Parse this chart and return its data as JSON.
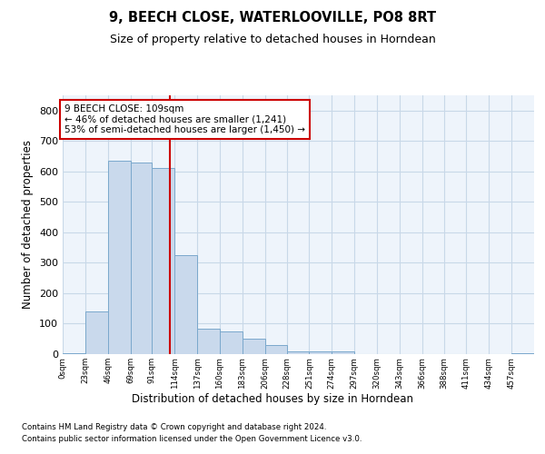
{
  "title1": "9, BEECH CLOSE, WATERLOOVILLE, PO8 8RT",
  "title2": "Size of property relative to detached houses in Horndean",
  "xlabel": "Distribution of detached houses by size in Horndean",
  "ylabel": "Number of detached properties",
  "footnote1": "Contains HM Land Registry data © Crown copyright and database right 2024.",
  "footnote2": "Contains public sector information licensed under the Open Government Licence v3.0.",
  "bin_labels": [
    "0sqm",
    "23sqm",
    "46sqm",
    "69sqm",
    "91sqm",
    "114sqm",
    "137sqm",
    "160sqm",
    "183sqm",
    "206sqm",
    "228sqm",
    "251sqm",
    "274sqm",
    "297sqm",
    "320sqm",
    "343sqm",
    "366sqm",
    "388sqm",
    "411sqm",
    "434sqm",
    "457sqm"
  ],
  "bar_values": [
    2,
    140,
    635,
    630,
    610,
    325,
    85,
    75,
    50,
    30,
    10,
    10,
    10,
    0,
    0,
    0,
    0,
    0,
    0,
    0,
    2
  ],
  "bin_edges": [
    0,
    23,
    46,
    69,
    91,
    114,
    137,
    160,
    183,
    206,
    228,
    251,
    274,
    297,
    320,
    343,
    366,
    388,
    411,
    434,
    457,
    480
  ],
  "property_line_x": 109,
  "annotation_text1": "9 BEECH CLOSE: 109sqm",
  "annotation_text2": "← 46% of detached houses are smaller (1,241)",
  "annotation_text3": "53% of semi-detached houses are larger (1,450) →",
  "bar_color": "#c9d9ec",
  "bar_edge_color": "#7aa8cc",
  "line_color": "#cc0000",
  "annotation_box_edge": "#cc0000",
  "grid_color": "#c8d8e8",
  "background_color": "#eef4fb",
  "ylim": [
    0,
    850
  ],
  "yticks": [
    0,
    100,
    200,
    300,
    400,
    500,
    600,
    700,
    800
  ]
}
